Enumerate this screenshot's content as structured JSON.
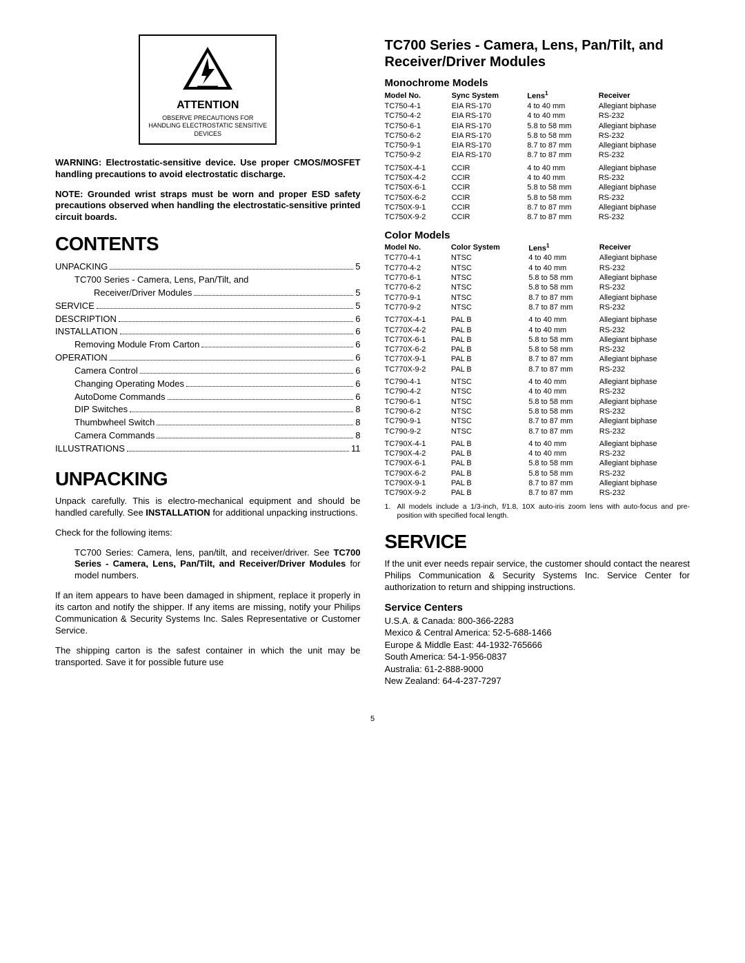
{
  "attention": {
    "title": "ATTENTION",
    "text": "OBSERVE PRECAUTIONS FOR HANDLING ELECTROSTATIC SENSITIVE DEVICES"
  },
  "warning": {
    "label": "WARNING:",
    "text": "Electrostatic-sensitive device. Use proper CMOS/MOSFET handling precautions to avoid electrostatic discharge."
  },
  "note": {
    "label": "NOTE:",
    "text": "Grounded wrist straps must be worn and proper ESD safety precautions observed when handling the electrostatic-sensitive printed circuit boards."
  },
  "headings": {
    "contents": "CONTENTS",
    "unpacking": "UNPACKING",
    "tc700": "TC700 Series - Camera, Lens, Pan/Tilt, and Receiver/Driver Modules",
    "mono": "Monochrome Models",
    "color": "Color Models",
    "service": "SERVICE",
    "service_centers": "Service Centers"
  },
  "toc": [
    {
      "label": "UNPACKING",
      "page": "5",
      "indent": 0
    },
    {
      "label": "TC700 Series - Camera, Lens,  Pan/Tilt, and",
      "page": "",
      "indent": 1,
      "nodots": true
    },
    {
      "label": "Receiver/Driver Modules",
      "page": "5",
      "indent": 2
    },
    {
      "label": "SERVICE",
      "page": "5",
      "indent": 0
    },
    {
      "label": "DESCRIPTION",
      "page": "6",
      "indent": 0
    },
    {
      "label": "INSTALLATION",
      "page": "6",
      "indent": 0
    },
    {
      "label": "Removing Module From Carton",
      "page": "6",
      "indent": 1
    },
    {
      "label": "OPERATION",
      "page": "6",
      "indent": 0
    },
    {
      "label": "Camera Control",
      "page": "6",
      "indent": 1
    },
    {
      "label": "Changing Operating Modes",
      "page": "6",
      "indent": 1
    },
    {
      "label": "AutoDome Commands",
      "page": "6",
      "indent": 1
    },
    {
      "label": "DIP Switches",
      "page": "8",
      "indent": 1
    },
    {
      "label": "Thumbwheel Switch",
      "page": "8",
      "indent": 1
    },
    {
      "label": "Camera Commands",
      "page": "8",
      "indent": 1
    },
    {
      "label": "ILLUSTRATIONS",
      "page": "11",
      "indent": 0
    }
  ],
  "unpacking": {
    "p1a": "Unpack carefully. This is electro-mechanical equipment and should be handled carefully. See ",
    "p1b": "INSTALLATION",
    "p1c": " for additional unpacking instructions.",
    "p2": "Check for the following items:",
    "item1a": "TC700 Series: Camera, lens, pan/tilt, and receiver/driver. See ",
    "item1b": "TC700 Series - Camera, Lens, Pan/Tilt, and Receiver/Driver Modules",
    "item1c": " for model numbers.",
    "p3": "If an item appears to have been damaged in shipment, replace it properly in its carton and notify the shipper. If any items are missing, notify your Philips Communication & Security Systems Inc. Sales Representative or Customer Service.",
    "p4": "The shipping carton is the safest container in which the unit may be transported. Save it for possible future use"
  },
  "monoHeaders": [
    "Model No.",
    "Sync System",
    "Lens",
    "Receiver"
  ],
  "monoGroups": [
    [
      [
        "TC750-4-1",
        "EIA RS-170",
        "4 to 40 mm",
        "Allegiant biphase"
      ],
      [
        "TC750-4-2",
        "EIA RS-170",
        "4 to 40 mm",
        "RS-232"
      ],
      [
        "TC750-6-1",
        "EIA RS-170",
        "5.8 to 58 mm",
        "Allegiant biphase"
      ],
      [
        "TC750-6-2",
        "EIA RS-170",
        "5.8 to 58 mm",
        "RS-232"
      ],
      [
        "TC750-9-1",
        "EIA RS-170",
        "8.7 to 87 mm",
        "Allegiant biphase"
      ],
      [
        "TC750-9-2",
        "EIA RS-170",
        "8.7 to 87 mm",
        "RS-232"
      ]
    ],
    [
      [
        "TC750X-4-1",
        "CCIR",
        "4 to 40 mm",
        "Allegiant biphase"
      ],
      [
        "TC750X-4-2",
        "CCIR",
        "4 to 40 mm",
        "RS-232"
      ],
      [
        "TC750X-6-1",
        "CCIR",
        "5.8 to 58 mm",
        "Allegiant biphase"
      ],
      [
        "TC750X-6-2",
        "CCIR",
        "5.8 to 58 mm",
        "RS-232"
      ],
      [
        "TC750X-9-1",
        "CCIR",
        "8.7 to 87 mm",
        "Allegiant biphase"
      ],
      [
        "TC750X-9-2",
        "CCIR",
        "8.7 to 87 mm",
        "RS-232"
      ]
    ]
  ],
  "colorHeaders": [
    "Model No.",
    "Color System",
    "Lens",
    "Receiver"
  ],
  "colorGroups": [
    [
      [
        "TC770-4-1",
        "NTSC",
        "4 to 40 mm",
        "Allegiant biphase"
      ],
      [
        "TC770-4-2",
        "NTSC",
        "4 to 40 mm",
        "RS-232"
      ],
      [
        "TC770-6-1",
        "NTSC",
        "5.8 to 58 mm",
        "Allegiant biphase"
      ],
      [
        "TC770-6-2",
        "NTSC",
        "5.8 to 58 mm",
        "RS-232"
      ],
      [
        "TC770-9-1",
        "NTSC",
        "8.7 to 87 mm",
        "Allegiant biphase"
      ],
      [
        "TC770-9-2",
        "NTSC",
        "8.7 to 87 mm",
        "RS-232"
      ]
    ],
    [
      [
        "TC770X-4-1",
        "PAL B",
        "4 to 40 mm",
        "Allegiant biphase"
      ],
      [
        "TC770X-4-2",
        "PAL B",
        "4 to 40 mm",
        "RS-232"
      ],
      [
        "TC770X-6-1",
        "PAL B",
        "5.8 to 58 mm",
        "Allegiant biphase"
      ],
      [
        "TC770X-6-2",
        "PAL B",
        "5.8 to 58 mm",
        "RS-232"
      ],
      [
        "TC770X-9-1",
        "PAL B",
        "8.7 to 87 mm",
        "Allegiant biphase"
      ],
      [
        "TC770X-9-2",
        "PAL B",
        "8.7 to 87 mm",
        "RS-232"
      ]
    ],
    [
      [
        "TC790-4-1",
        "NTSC",
        "4 to 40 mm",
        "Allegiant biphase"
      ],
      [
        "TC790-4-2",
        "NTSC",
        "4 to 40 mm",
        "RS-232"
      ],
      [
        "TC790-6-1",
        "NTSC",
        "5.8 to 58 mm",
        "Allegiant biphase"
      ],
      [
        "TC790-6-2",
        "NTSC",
        "5.8 to 58 mm",
        "RS-232"
      ],
      [
        "TC790-9-1",
        "NTSC",
        "8.7 to 87 mm",
        "Allegiant biphase"
      ],
      [
        "TC790-9-2",
        "NTSC",
        "8.7 to 87 mm",
        "RS-232"
      ]
    ],
    [
      [
        "TC790X-4-1",
        "PAL B",
        "4 to 40 mm",
        "Allegiant biphase"
      ],
      [
        "TC790X-4-2",
        "PAL B",
        "4 to 40 mm",
        "RS-232"
      ],
      [
        "TC790X-6-1",
        "PAL B",
        "5.8 to 58 mm",
        "Allegiant biphase"
      ],
      [
        "TC790X-6-2",
        "PAL B",
        "5.8 to 58 mm",
        "RS-232"
      ],
      [
        "TC790X-9-1",
        "PAL B",
        "8.7 to 87 mm",
        "Allegiant biphase"
      ],
      [
        "TC790X-9-2",
        "PAL B",
        "8.7 to 87 mm",
        "RS-232"
      ]
    ]
  ],
  "footnote": {
    "num": "1.",
    "text": "All models include a 1/3-inch, f/1.8, 10X auto-iris zoom lens with auto-focus and pre-position with specified focal length."
  },
  "service": {
    "p1": "If the unit ever needs repair service, the customer should contact the nearest Philips Communication & Security Systems Inc. Service Center for authorization to return and shipping instructions.",
    "centers": [
      "U.S.A. & Canada: 800-366-2283",
      "Mexico & Central America: 52-5-688-1466",
      "Europe & Middle East: 44-1932-765666",
      "South America: 54-1-956-0837",
      "Australia: 61-2-888-9000",
      "New Zealand: 64-4-237-7297"
    ]
  },
  "pageNumber": "5",
  "lensSup": "1"
}
